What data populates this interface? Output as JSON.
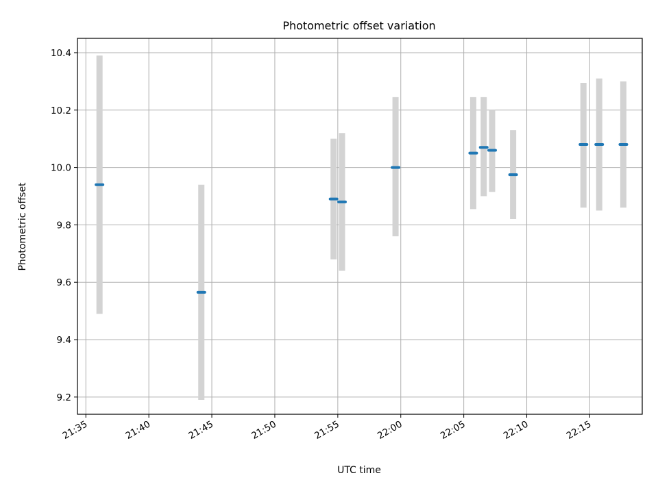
{
  "chart_data": {
    "type": "scatter",
    "title": "Photometric offset variation",
    "xlabel": "UTC time",
    "ylabel": "Photometric offset",
    "x_ticks": [
      "21:35",
      "21:40",
      "21:45",
      "21:50",
      "21:55",
      "22:00",
      "22:05",
      "22:10",
      "22:15"
    ],
    "y_ticks": [
      "9.2",
      "9.4",
      "9.6",
      "9.8",
      "10.0",
      "10.2",
      "10.4"
    ],
    "xlim": [
      "21:34:20",
      "22:19:10"
    ],
    "ylim": [
      9.14,
      10.45
    ],
    "grid": true,
    "colors": {
      "marker": "#1f77b4",
      "errorbar": "#d3d3d3"
    },
    "points": [
      {
        "x": "21:36:05",
        "y": 9.94,
        "ylow": 9.49,
        "yhigh": 10.39
      },
      {
        "x": "21:44:10",
        "y": 9.565,
        "ylow": 9.19,
        "yhigh": 9.94
      },
      {
        "x": "21:54:40",
        "y": 9.89,
        "ylow": 9.68,
        "yhigh": 10.1
      },
      {
        "x": "21:55:20",
        "y": 9.88,
        "ylow": 9.64,
        "yhigh": 10.12
      },
      {
        "x": "21:59:35",
        "y": 10.0,
        "ylow": 9.76,
        "yhigh": 10.245
      },
      {
        "x": "22:05:45",
        "y": 10.05,
        "ylow": 9.855,
        "yhigh": 10.245
      },
      {
        "x": "22:06:35",
        "y": 10.07,
        "ylow": 9.9,
        "yhigh": 10.245
      },
      {
        "x": "22:07:15",
        "y": 10.06,
        "ylow": 9.915,
        "yhigh": 10.2
      },
      {
        "x": "22:08:55",
        "y": 9.975,
        "ylow": 9.82,
        "yhigh": 10.13
      },
      {
        "x": "22:14:30",
        "y": 10.08,
        "ylow": 9.86,
        "yhigh": 10.295
      },
      {
        "x": "22:15:45",
        "y": 10.08,
        "ylow": 9.85,
        "yhigh": 10.31
      },
      {
        "x": "22:17:40",
        "y": 10.08,
        "ylow": 9.86,
        "yhigh": 10.3
      }
    ]
  }
}
